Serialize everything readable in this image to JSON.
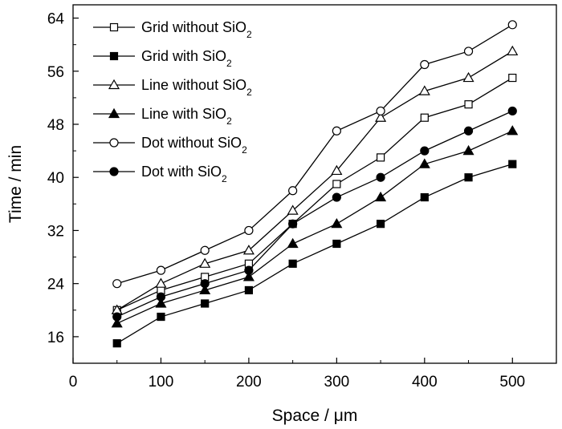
{
  "chart_data": {
    "type": "line",
    "xlabel": "Space / μm",
    "ylabel": "Time / min",
    "xlim": [
      0,
      550
    ],
    "ylim": [
      12,
      66
    ],
    "xticks": [
      0,
      100,
      200,
      300,
      400,
      500
    ],
    "xtick_labels": [
      "0",
      "100",
      "200",
      "300",
      "400",
      "500"
    ],
    "yticks": [
      16,
      24,
      32,
      40,
      48,
      56,
      64
    ],
    "ytick_labels": [
      "16",
      "24",
      "32",
      "40",
      "48",
      "56",
      "64"
    ],
    "grid": false,
    "legend_position": "top-left",
    "x": [
      50,
      100,
      150,
      200,
      250,
      300,
      350,
      400,
      450,
      500
    ],
    "series": [
      {
        "name": "Grid without SiO2",
        "label_main": "Grid without SiO",
        "label_sub": "2",
        "marker": "square",
        "filled": false,
        "values": [
          20,
          23,
          25,
          27,
          33,
          39,
          43,
          49,
          51,
          55
        ]
      },
      {
        "name": "Grid with SiO2",
        "label_main": "Grid with SiO",
        "label_sub": "2",
        "marker": "square",
        "filled": true,
        "values": [
          15,
          19,
          21,
          23,
          27,
          30,
          33,
          37,
          40,
          42
        ]
      },
      {
        "name": "Line without SiO2",
        "label_main": "Line without SiO",
        "label_sub": "2",
        "marker": "triangle",
        "filled": false,
        "values": [
          20,
          24,
          27,
          29,
          35,
          41,
          49,
          53,
          55,
          59
        ]
      },
      {
        "name": "Line with SiO2",
        "label_main": "Line with SiO",
        "label_sub": "2",
        "marker": "triangle",
        "filled": true,
        "values": [
          18,
          21,
          23,
          25,
          30,
          33,
          37,
          42,
          44,
          47
        ]
      },
      {
        "name": "Dot without SiO2",
        "label_main": "Dot without SiO",
        "label_sub": "2",
        "marker": "circle",
        "filled": false,
        "values": [
          24,
          26,
          29,
          32,
          38,
          47,
          50,
          57,
          59,
          63
        ]
      },
      {
        "name": "Dot with SiO2",
        "label_main": "Dot with SiO",
        "label_sub": "2",
        "marker": "circle",
        "filled": true,
        "values": [
          19,
          22,
          24,
          26,
          33,
          37,
          40,
          44,
          47,
          50
        ]
      }
    ]
  }
}
